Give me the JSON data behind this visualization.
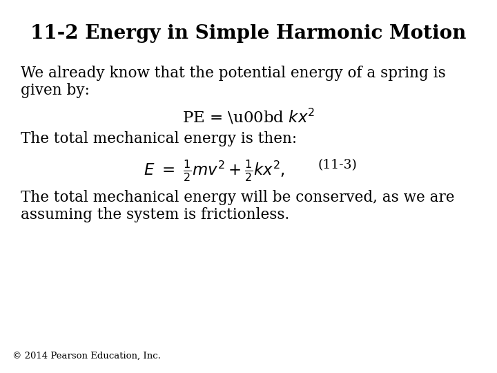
{
  "title": "11-2 Energy in Simple Harmonic Motion",
  "background_color": "#ffffff",
  "title_fontsize": 20,
  "title_fontweight": "bold",
  "title_color": "#000000",
  "body_fontsize": 15.5,
  "body_color": "#000000",
  "footer_text": "© 2014 Pearson Education, Inc.",
  "footer_fontsize": 9.5,
  "para1_line1": "We already know that the potential energy of a spring is",
  "para1_line2": "given by:",
  "para2": "The total mechanical energy is then:",
  "equation_label": "(11-3)",
  "para3_line1": "The total mechanical energy will be conserved, as we are",
  "para3_line2": "assuming the system is frictionless."
}
